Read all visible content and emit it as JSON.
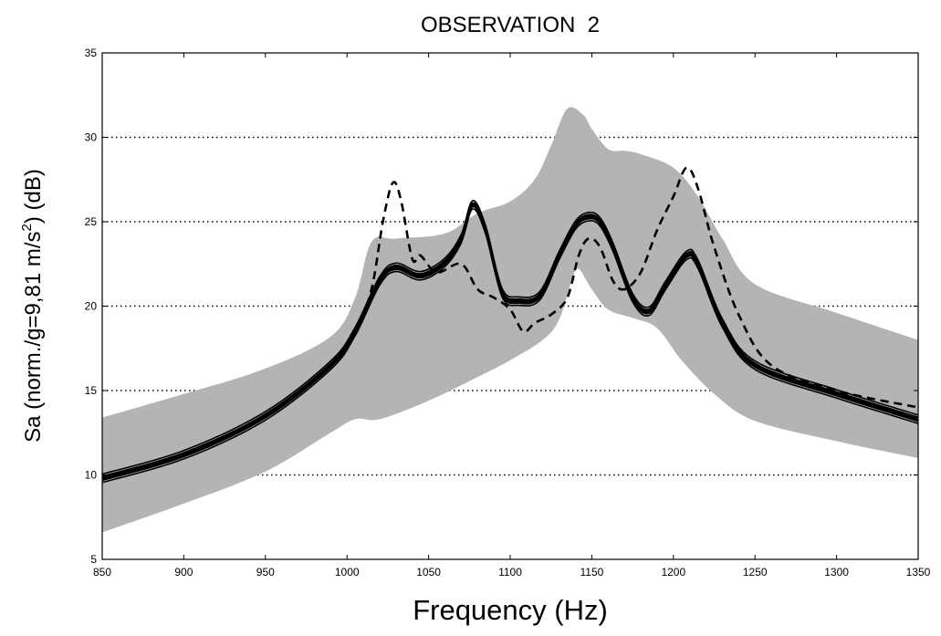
{
  "chart_data": {
    "type": "line",
    "title": "OBSERVATION  2",
    "xlabel": "Frequency (Hz)",
    "ylabel": {
      "prefix": "Sa (norm./g=9,81 m/s",
      "superscript": "2",
      "suffix": ") (dB)"
    },
    "xlim": [
      850,
      1350
    ],
    "ylim": [
      5,
      35
    ],
    "xticks": [
      850,
      900,
      950,
      1000,
      1050,
      1100,
      1150,
      1200,
      1250,
      1300,
      1350
    ],
    "yticks": [
      5,
      10,
      15,
      20,
      25,
      30,
      35
    ],
    "grid": "horizontal dotted",
    "colors": {
      "band": "#b4b4b4",
      "line": "#000000"
    },
    "series": [
      {
        "kind": "band",
        "upper": {
          "x": [
            850,
            900,
            950,
            990,
            1005,
            1015,
            1030,
            1060,
            1080,
            1100,
            1115,
            1125,
            1135,
            1145,
            1150,
            1160,
            1170,
            1180,
            1200,
            1215,
            1230,
            1250,
            1300,
            1350
          ],
          "y": [
            13.4,
            14.8,
            16.3,
            18.2,
            20.5,
            23.8,
            24.0,
            24.3,
            25.5,
            26.2,
            27.5,
            29.5,
            31.7,
            31.3,
            30.5,
            29.3,
            29.2,
            29.0,
            28.2,
            26.5,
            24.0,
            21.3,
            19.6,
            18.0
          ]
        },
        "lower": {
          "x": [
            850,
            900,
            950,
            990,
            1005,
            1020,
            1050,
            1080,
            1100,
            1120,
            1130,
            1138,
            1142,
            1150,
            1160,
            1175,
            1190,
            1205,
            1225,
            1250,
            1300,
            1350
          ],
          "y": [
            6.6,
            8.3,
            10.2,
            12.5,
            13.3,
            13.3,
            14.4,
            15.8,
            16.8,
            18.0,
            19.2,
            21.6,
            22.2,
            21.0,
            19.8,
            19.3,
            18.7,
            16.8,
            14.8,
            13.2,
            12.0,
            11.0
          ]
        }
      },
      {
        "kind": "solid",
        "x": [
          850,
          900,
          950,
          990,
          1005,
          1020,
          1030,
          1045,
          1060,
          1070,
          1077,
          1085,
          1095,
          1105,
          1118,
          1130,
          1140,
          1148,
          1155,
          1163,
          1175,
          1185,
          1195,
          1208,
          1215,
          1230,
          1250,
          1300,
          1350
        ],
        "y": [
          9.8,
          11.2,
          13.5,
          16.5,
          18.5,
          21.5,
          22.3,
          21.8,
          22.6,
          24.0,
          26.0,
          24.5,
          20.8,
          20.3,
          20.6,
          23.0,
          24.8,
          25.3,
          25.0,
          23.5,
          20.5,
          19.7,
          21.2,
          23.0,
          22.5,
          19.0,
          16.5,
          14.8,
          13.3
        ]
      },
      {
        "kind": "dashed",
        "x": [
          850,
          900,
          950,
          990,
          1005,
          1015,
          1022,
          1028,
          1033,
          1040,
          1045,
          1055,
          1070,
          1080,
          1090,
          1100,
          1108,
          1115,
          1125,
          1135,
          1142,
          1148,
          1155,
          1163,
          1170,
          1180,
          1190,
          1200,
          1208,
          1215,
          1225,
          1240,
          1260,
          1300,
          1350
        ],
        "y": [
          9.8,
          11.2,
          13.5,
          16.5,
          18.5,
          21.0,
          25.0,
          27.3,
          26.3,
          22.8,
          23.0,
          22.0,
          22.5,
          21.0,
          20.5,
          19.8,
          18.5,
          19.0,
          19.5,
          20.5,
          23.0,
          24.0,
          23.5,
          21.5,
          21.0,
          22.0,
          24.5,
          26.5,
          28.2,
          27.0,
          23.5,
          19.5,
          16.5,
          15.0,
          14.0
        ]
      }
    ]
  }
}
